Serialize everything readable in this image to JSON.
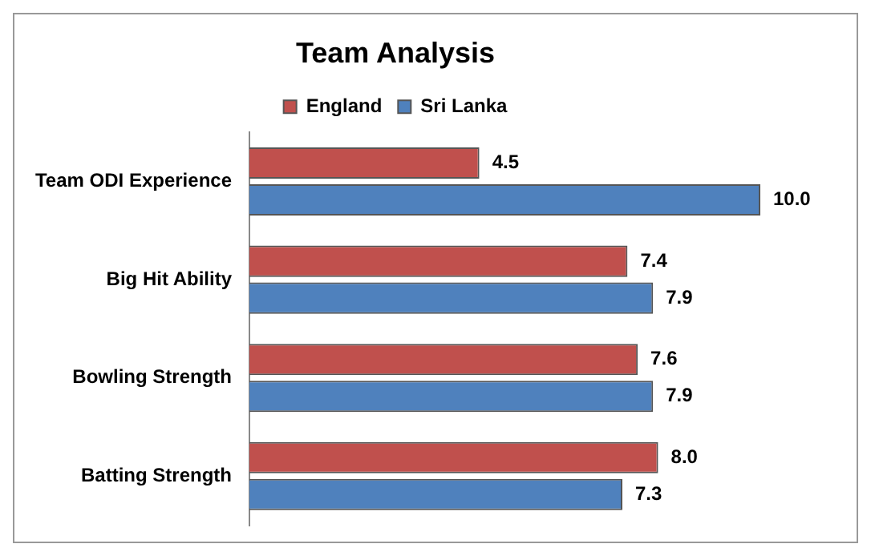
{
  "chart_data": {
    "type": "bar",
    "title": "Team Analysis",
    "orientation": "horizontal",
    "categories": [
      "Team ODI Experience",
      "Big Hit Ability",
      "Bowling Strength",
      "Batting Strength"
    ],
    "series": [
      {
        "name": "England",
        "color": "#c0504d",
        "values": [
          4.5,
          7.4,
          7.6,
          8
        ],
        "value_labels": [
          "4.5",
          "7.4",
          "7.6",
          "8.0"
        ]
      },
      {
        "name": "Sri Lanka",
        "color": "#4f81bd",
        "values": [
          10,
          7.9,
          7.9,
          7.3
        ],
        "value_labels": [
          "10.0",
          "7.9",
          "7.9",
          "7.3"
        ]
      }
    ],
    "legend": "top"
  }
}
